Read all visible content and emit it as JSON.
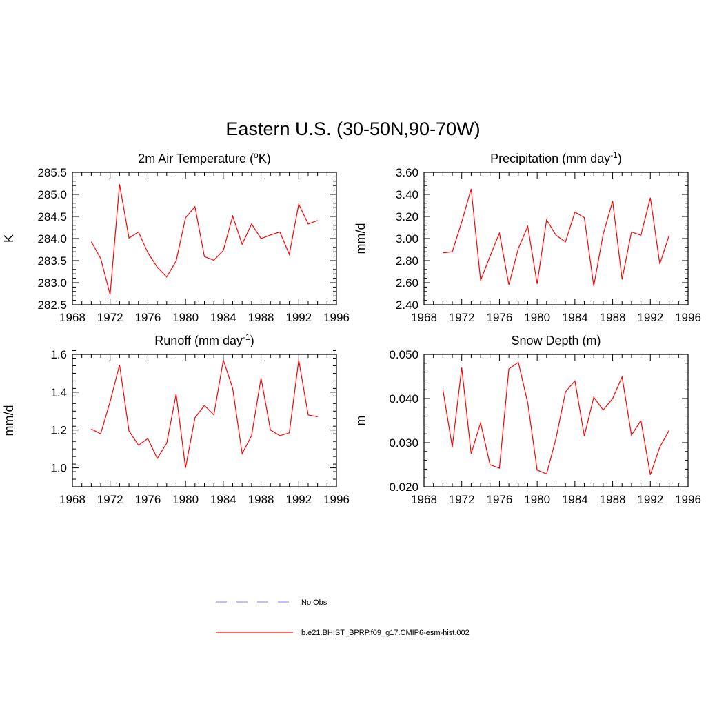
{
  "figure": {
    "title": "Eastern U.S. (30-50N,90-70W)"
  },
  "legend": {
    "items": [
      {
        "label": "No Obs",
        "color": "#9999ff",
        "style": "dashed"
      },
      {
        "label": "b.e21.BHIST_BPRP.f09_g17.CMIP6-esm-hist.002",
        "color": "#ff0000",
        "style": "solid"
      }
    ]
  },
  "chart_data": [
    {
      "type": "line",
      "title_main": "2m Air Temperature (",
      "title_sup": "o",
      "title_tail": "K)",
      "ylabel": "K",
      "xlim": [
        1968,
        1996
      ],
      "ylim": [
        282.5,
        285.5
      ],
      "xticks": [
        "1968",
        "1972",
        "1976",
        "1980",
        "1984",
        "1988",
        "1992",
        "1996"
      ],
      "yticks": [
        "282.5",
        "283.0",
        "283.5",
        "284.0",
        "284.5",
        "285.0",
        "285.5"
      ],
      "ytick_values": [
        282.5,
        283.0,
        283.5,
        284.0,
        284.5,
        285.0,
        285.5
      ],
      "ylim_minor_step": 0.1,
      "series": [
        {
          "name": "b.e21.BHIST_BPRP.f09_g17.CMIP6-esm-hist.002",
          "color": "#ff0000",
          "x": [
            1970,
            1971,
            1972,
            1973,
            1974,
            1975,
            1976,
            1977,
            1978,
            1979,
            1980,
            1981,
            1982,
            1983,
            1984,
            1985,
            1986,
            1987,
            1988,
            1989,
            1990,
            1991,
            1992,
            1993,
            1994
          ],
          "y": [
            283.93,
            283.55,
            282.73,
            285.23,
            284.01,
            284.15,
            283.68,
            283.35,
            283.13,
            283.49,
            284.47,
            284.72,
            283.59,
            283.51,
            283.73,
            284.51,
            283.87,
            284.33,
            284.0,
            284.08,
            284.15,
            283.64,
            284.78,
            284.33,
            284.41
          ]
        }
      ]
    },
    {
      "type": "line",
      "title_main": "Precipitation (mm day",
      "title_sup": "-1",
      "title_tail": ")",
      "ylabel": "mm/d",
      "xlim": [
        1968,
        1996
      ],
      "ylim": [
        2.4,
        3.6
      ],
      "xticks": [
        "1968",
        "1972",
        "1976",
        "1980",
        "1984",
        "1988",
        "1992",
        "1996"
      ],
      "yticks": [
        "2.40",
        "2.60",
        "2.80",
        "3.00",
        "3.20",
        "3.40",
        "3.60"
      ],
      "ytick_values": [
        2.4,
        2.6,
        2.8,
        3.0,
        3.2,
        3.4,
        3.6
      ],
      "ylim_minor_step": 0.04,
      "series": [
        {
          "name": "b.e21.BHIST_BPRP.f09_g17.CMIP6-esm-hist.002",
          "color": "#ff0000",
          "x": [
            1970,
            1971,
            1972,
            1973,
            1974,
            1975,
            1976,
            1977,
            1978,
            1979,
            1980,
            1981,
            1982,
            1983,
            1984,
            1985,
            1986,
            1987,
            1988,
            1989,
            1990,
            1991,
            1992,
            1993,
            1994
          ],
          "y": [
            2.87,
            2.88,
            3.15,
            3.45,
            2.62,
            2.84,
            3.05,
            2.58,
            2.91,
            3.11,
            2.59,
            3.17,
            3.03,
            2.97,
            3.24,
            3.19,
            2.57,
            3.04,
            3.34,
            2.63,
            3.06,
            3.03,
            3.37,
            2.77,
            3.03
          ]
        }
      ]
    },
    {
      "type": "line",
      "title_main": "Runoff (mm day",
      "title_sup": "-1",
      "title_tail": ")",
      "ylabel": "mm/d",
      "xlim": [
        1968,
        1996
      ],
      "ylim": [
        0.9,
        1.6
      ],
      "xticks": [
        "1968",
        "1972",
        "1976",
        "1980",
        "1984",
        "1988",
        "1992",
        "1996"
      ],
      "yticks": [
        "1.0",
        "1.2",
        "1.4",
        "1.6"
      ],
      "ytick_values": [
        1.0,
        1.2,
        1.4,
        1.6
      ],
      "ylim_minor_step": 0.04,
      "series": [
        {
          "name": "b.e21.BHIST_BPRP.f09_g17.CMIP6-esm-hist.002",
          "color": "#ff0000",
          "x": [
            1970,
            1971,
            1972,
            1973,
            1974,
            1975,
            1976,
            1977,
            1978,
            1979,
            1980,
            1981,
            1982,
            1983,
            1984,
            1985,
            1986,
            1987,
            1988,
            1989,
            1990,
            1991,
            1992,
            1993,
            1994
          ],
          "y": [
            1.205,
            1.18,
            1.35,
            1.545,
            1.195,
            1.12,
            1.155,
            1.05,
            1.13,
            1.39,
            1.0,
            1.265,
            1.33,
            1.28,
            1.57,
            1.42,
            1.075,
            1.17,
            1.475,
            1.2,
            1.17,
            1.185,
            1.57,
            1.28,
            1.27
          ]
        }
      ]
    },
    {
      "type": "line",
      "title_main": "Snow Depth (m)",
      "title_sup": "",
      "title_tail": "",
      "ylabel": "m",
      "xlim": [
        1968,
        1996
      ],
      "ylim": [
        0.02,
        0.05
      ],
      "xticks": [
        "1968",
        "1972",
        "1976",
        "1980",
        "1984",
        "1988",
        "1992",
        "1996"
      ],
      "yticks": [
        "0.020",
        "0.030",
        "0.040",
        "0.050"
      ],
      "ytick_values": [
        0.02,
        0.03,
        0.04,
        0.05
      ],
      "ylim_minor_step": 0.002,
      "series": [
        {
          "name": "b.e21.BHIST_BPRP.f09_g17.CMIP6-esm-hist.002",
          "color": "#ff0000",
          "x": [
            1970,
            1971,
            1972,
            1973,
            1974,
            1975,
            1976,
            1977,
            1978,
            1979,
            1980,
            1981,
            1982,
            1983,
            1984,
            1985,
            1986,
            1987,
            1988,
            1989,
            1990,
            1991,
            1992,
            1993,
            1994
          ],
          "y": [
            0.042,
            0.029,
            0.047,
            0.0275,
            0.0345,
            0.025,
            0.0242,
            0.0467,
            0.0482,
            0.039,
            0.0238,
            0.0229,
            0.031,
            0.0415,
            0.044,
            0.0315,
            0.0403,
            0.0374,
            0.04,
            0.0449,
            0.0317,
            0.035,
            0.0227,
            0.029,
            0.0328
          ]
        }
      ]
    }
  ]
}
